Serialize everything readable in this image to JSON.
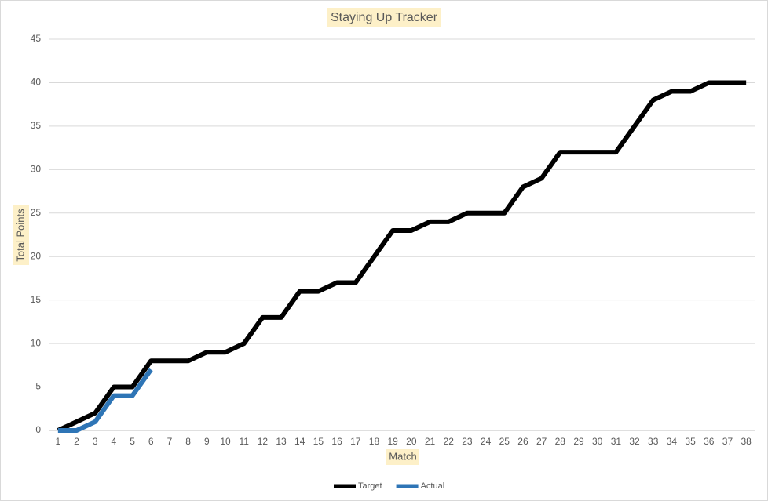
{
  "chart_data": {
    "type": "line",
    "title": "Staying Up Tracker",
    "x_label": "Match",
    "y_label": "Total Points",
    "categories": [
      "1",
      "2",
      "3",
      "4",
      "5",
      "6",
      "7",
      "8",
      "9",
      "10",
      "11",
      "12",
      "13",
      "14",
      "15",
      "16",
      "17",
      "18",
      "19",
      "20",
      "21",
      "22",
      "23",
      "24",
      "25",
      "26",
      "27",
      "28",
      "29",
      "30",
      "31",
      "32",
      "33",
      "34",
      "35",
      "36",
      "37",
      "38"
    ],
    "series": [
      {
        "name": "Target",
        "color": "#000000",
        "values": [
          0,
          1,
          2,
          5,
          5,
          8,
          8,
          8,
          9,
          9,
          10,
          13,
          13,
          16,
          16,
          17,
          17,
          20,
          23,
          23,
          24,
          24,
          25,
          25,
          25,
          28,
          29,
          32,
          32,
          32,
          32,
          35,
          38,
          39,
          39,
          40,
          40,
          40
        ]
      },
      {
        "name": "Actual",
        "color": "#2e75b6",
        "values": [
          0,
          0,
          1,
          4,
          4,
          7,
          null,
          null,
          null,
          null,
          null,
          null,
          null,
          null,
          null,
          null,
          null,
          null,
          null,
          null,
          null,
          null,
          null,
          null,
          null,
          null,
          null,
          null,
          null,
          null,
          null,
          null,
          null,
          null,
          null,
          null,
          null,
          null
        ]
      }
    ],
    "ylim": [
      0,
      45
    ],
    "yticks": [
      0,
      5,
      10,
      15,
      20,
      25,
      30,
      35,
      40,
      45
    ],
    "grid": true,
    "legend": "bottom"
  }
}
